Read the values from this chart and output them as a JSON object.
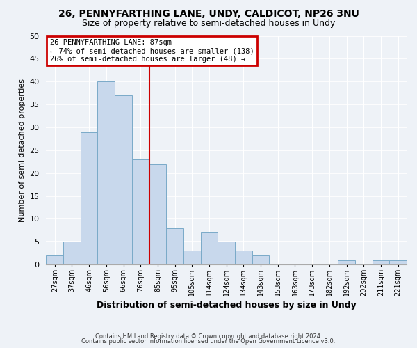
{
  "title1": "26, PENNYFARTHING LANE, UNDY, CALDICOT, NP26 3NU",
  "title2": "Size of property relative to semi-detached houses in Undy",
  "xlabel": "Distribution of semi-detached houses by size in Undy",
  "ylabel": "Number of semi-detached properties",
  "categories": [
    "27sqm",
    "37sqm",
    "46sqm",
    "56sqm",
    "66sqm",
    "76sqm",
    "85sqm",
    "95sqm",
    "105sqm",
    "114sqm",
    "124sqm",
    "134sqm",
    "143sqm",
    "153sqm",
    "163sqm",
    "173sqm",
    "182sqm",
    "192sqm",
    "202sqm",
    "211sqm",
    "221sqm"
  ],
  "values": [
    2,
    5,
    29,
    40,
    37,
    23,
    22,
    8,
    3,
    7,
    5,
    3,
    2,
    0,
    0,
    0,
    0,
    1,
    0,
    1,
    1
  ],
  "bar_color": "#c8d8ec",
  "bar_edge_color": "#7aaac8",
  "vline_color": "#cc0000",
  "ylim": [
    0,
    50
  ],
  "yticks": [
    0,
    5,
    10,
    15,
    20,
    25,
    30,
    35,
    40,
    45,
    50
  ],
  "annotation_title": "26 PENNYFARTHING LANE: 87sqm",
  "annotation_line1": "← 74% of semi-detached houses are smaller (138)",
  "annotation_line2": "26% of semi-detached houses are larger (48) →",
  "annotation_box_color": "#ffffff",
  "annotation_box_edge": "#cc0000",
  "footnote1": "Contains HM Land Registry data © Crown copyright and database right 2024.",
  "footnote2": "Contains public sector information licensed under the Open Government Licence v3.0.",
  "background_color": "#eef2f7",
  "plot_bg_color": "#eef2f7"
}
